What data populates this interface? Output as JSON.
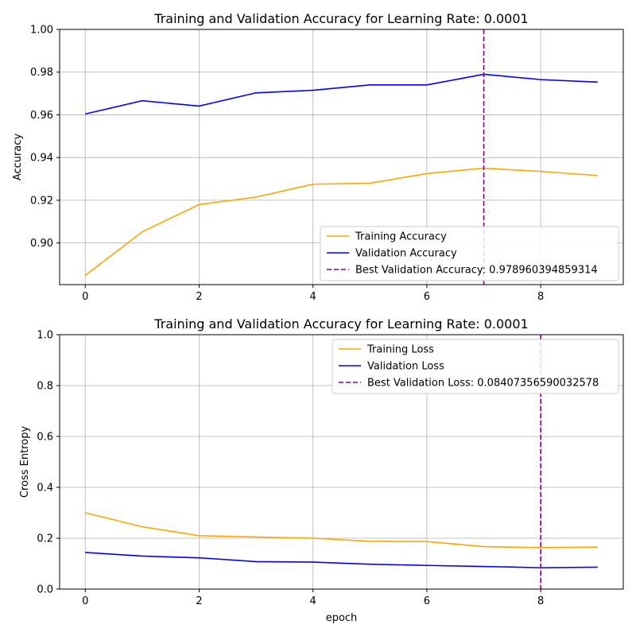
{
  "chart_data": [
    {
      "type": "line",
      "title": "Training and Validation Accuracy for Learning Rate: 0.0001",
      "xlabel": "",
      "ylabel": "Accuracy",
      "xlim": [
        -0.45,
        9.45
      ],
      "ylim": [
        0.8805,
        1.0
      ],
      "x_ticks": [
        0,
        2,
        4,
        6,
        8
      ],
      "y_ticks": [
        0.9,
        0.92,
        0.94,
        0.96,
        0.98,
        1.0
      ],
      "y_tick_labels": [
        "0.90",
        "0.92",
        "0.94",
        "0.96",
        "0.98",
        "1.00"
      ],
      "grid": true,
      "legend_position": "lower-right",
      "x": [
        0,
        1,
        2,
        3,
        4,
        5,
        6,
        7,
        8,
        9
      ],
      "series": [
        {
          "name": "Training Accuracy",
          "color": "#ffa500",
          "values": [
            0.8848,
            0.9052,
            0.918,
            0.9215,
            0.9275,
            0.928,
            0.9325,
            0.935,
            0.9335,
            0.9316
          ]
        },
        {
          "name": "Validation Accuracy",
          "color": "#0000ff",
          "values": [
            0.9604,
            0.9666,
            0.9641,
            0.9703,
            0.9715,
            0.974,
            0.974,
            0.979,
            0.9765,
            0.9753
          ]
        }
      ],
      "marker_line": {
        "name": "Best Validation Accuracy: 0.978960394859314",
        "x": 7,
        "color": "#800080"
      }
    },
    {
      "type": "line",
      "title": "Training and Validation Accuracy for Learning Rate: 0.0001",
      "xlabel": "epoch",
      "ylabel": "Cross Entropy",
      "xlim": [
        -0.45,
        9.45
      ],
      "ylim": [
        0.0,
        1.0
      ],
      "x_ticks": [
        0,
        2,
        4,
        6,
        8
      ],
      "y_ticks": [
        0.0,
        0.2,
        0.4,
        0.6,
        0.8,
        1.0
      ],
      "y_tick_labels": [
        "0.0",
        "0.2",
        "0.4",
        "0.6",
        "0.8",
        "1.0"
      ],
      "grid": true,
      "legend_position": "upper-right",
      "x": [
        0,
        1,
        2,
        3,
        4,
        5,
        6,
        7,
        8,
        9
      ],
      "series": [
        {
          "name": "Training Loss",
          "color": "#ffa500",
          "values": [
            0.3,
            0.245,
            0.21,
            0.205,
            0.2,
            0.188,
            0.187,
            0.167,
            0.163,
            0.165
          ]
        },
        {
          "name": "Validation Loss",
          "color": "#0000ff",
          "values": [
            0.144,
            0.13,
            0.123,
            0.108,
            0.106,
            0.098,
            0.093,
            0.089,
            0.084,
            0.086
          ]
        }
      ],
      "marker_line": {
        "name": "Best Validation Loss: 0.08407356590032578",
        "x": 8,
        "color": "#800080"
      }
    }
  ]
}
